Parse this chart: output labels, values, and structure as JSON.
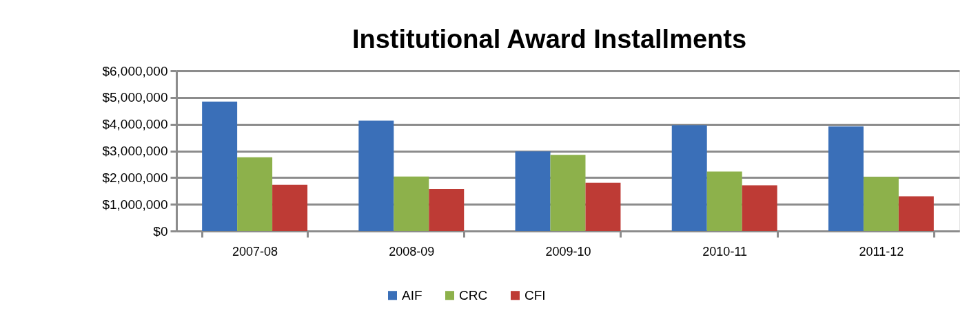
{
  "chart_data": {
    "type": "bar",
    "title": "Institutional Award Installments",
    "categories": [
      "2007-08",
      "2008-09",
      "2009-10",
      "2010-11",
      "2011-12"
    ],
    "series": [
      {
        "name": "AIF",
        "color": "#3a6fb8",
        "values": [
          4850000,
          4130000,
          2980000,
          3960000,
          3920000
        ]
      },
      {
        "name": "CRC",
        "color": "#8db14b",
        "values": [
          2760000,
          2040000,
          2850000,
          2230000,
          2030000
        ]
      },
      {
        "name": "CFI",
        "color": "#be3b35",
        "values": [
          1730000,
          1570000,
          1810000,
          1710000,
          1300000
        ]
      }
    ],
    "ylim": [
      0,
      6000000
    ],
    "yticks": [
      {
        "value": 0,
        "label": "$0"
      },
      {
        "value": 1000000,
        "label": "$1,000,000"
      },
      {
        "value": 2000000,
        "label": "$2,000,000"
      },
      {
        "value": 3000000,
        "label": "$3,000,000"
      },
      {
        "value": 4000000,
        "label": "$4,000,000"
      },
      {
        "value": 5000000,
        "label": "$5,000,000"
      },
      {
        "value": 6000000,
        "label": "$6,000,000"
      }
    ],
    "grid": "y",
    "legend": "bottom"
  }
}
